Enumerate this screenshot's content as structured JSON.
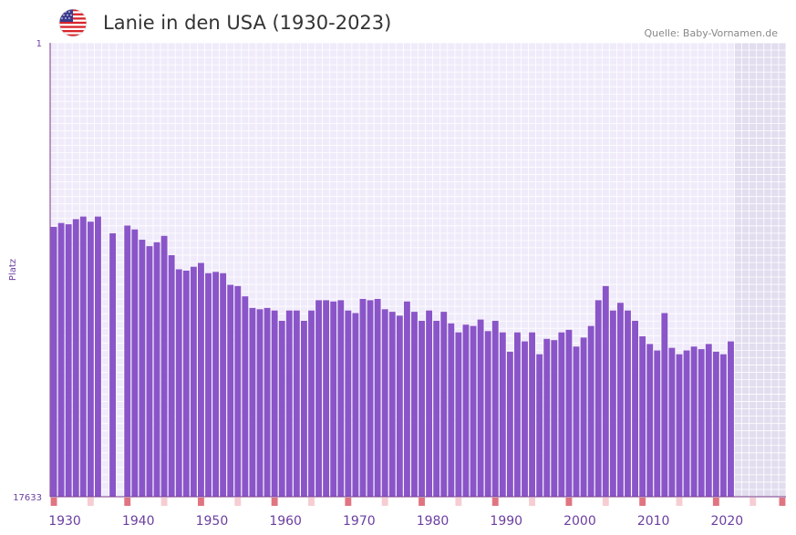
{
  "header": {
    "title": "Lanie in den USA (1930-2023)",
    "source": "Quelle: Baby-Vornamen.de",
    "flag_icon": "usa-flag-icon"
  },
  "colors": {
    "bar": "#8a55c8",
    "background": "#f0ebfa",
    "future": "#e2ddef",
    "grid": "#ffffff",
    "axis": "#7a3a8a",
    "decade_marker": "#e07480",
    "half_marker": "#f6cdd3",
    "tick_text": "#6b3fa0"
  },
  "chart_data": {
    "type": "bar",
    "title": "Lanie in den USA (1930-2023)",
    "ylabel": "Platz",
    "xlabel": "",
    "y_reversed": true,
    "ylim": [
      1,
      17633
    ],
    "xlim": [
      1930,
      2029
    ],
    "y_ticks": [
      "1",
      "17633"
    ],
    "x_ticks": [
      "1930",
      "1940",
      "1950",
      "1960",
      "1970",
      "1980",
      "1990",
      "2000",
      "2010",
      "2020"
    ],
    "future_start_year": 2023,
    "categories": [
      1930,
      1931,
      1932,
      1933,
      1934,
      1935,
      1936,
      1937,
      1938,
      1939,
      1940,
      1941,
      1942,
      1943,
      1944,
      1945,
      1946,
      1947,
      1948,
      1949,
      1950,
      1951,
      1952,
      1953,
      1954,
      1955,
      1956,
      1957,
      1958,
      1959,
      1960,
      1961,
      1962,
      1963,
      1964,
      1965,
      1966,
      1967,
      1968,
      1969,
      1970,
      1971,
      1972,
      1973,
      1974,
      1975,
      1976,
      1977,
      1978,
      1979,
      1980,
      1981,
      1982,
      1983,
      1984,
      1985,
      1986,
      1987,
      1988,
      1989,
      1990,
      1991,
      1992,
      1993,
      1994,
      1995,
      1996,
      1997,
      1998,
      1999,
      2000,
      2001,
      2002,
      2003,
      2004,
      2005,
      2006,
      2007,
      2008,
      2009,
      2010,
      2011,
      2012,
      2013,
      2014,
      2015,
      2016,
      2017,
      2018,
      2019,
      2020,
      2021,
      2022
    ],
    "values": [
      7150,
      7000,
      7050,
      6850,
      6750,
      6950,
      6750,
      null,
      7400,
      null,
      7100,
      7250,
      7650,
      7900,
      7750,
      7500,
      8250,
      8800,
      8850,
      8700,
      8550,
      8950,
      8900,
      8950,
      9400,
      9450,
      9850,
      10300,
      10350,
      10300,
      10400,
      10800,
      10400,
      10400,
      10800,
      10400,
      10000,
      10000,
      10050,
      10000,
      10400,
      10500,
      9950,
      10000,
      9950,
      10350,
      10450,
      10600,
      10050,
      10450,
      10800,
      10400,
      10800,
      10450,
      10900,
      11250,
      10950,
      11000,
      10750,
      11200,
      10800,
      11250,
      12000,
      11250,
      11600,
      11250,
      12100,
      11500,
      11550,
      11250,
      11150,
      11800,
      11450,
      11000,
      10000,
      9450,
      10400,
      10100,
      10400,
      10800,
      11400,
      11700,
      11950,
      10500,
      11850,
      12100,
      11950,
      11800,
      11900,
      11700,
      12000,
      12100,
      11600
    ],
    "markers": [
      {
        "year": 1930,
        "level": "strong"
      },
      {
        "year": 1935,
        "level": "light"
      },
      {
        "year": 1940,
        "level": "strong"
      },
      {
        "year": 1945,
        "level": "light"
      },
      {
        "year": 1950,
        "level": "strong"
      },
      {
        "year": 1955,
        "level": "light"
      },
      {
        "year": 1960,
        "level": "strong"
      },
      {
        "year": 1965,
        "level": "light"
      },
      {
        "year": 1970,
        "level": "strong"
      },
      {
        "year": 1975,
        "level": "light"
      },
      {
        "year": 1980,
        "level": "strong"
      },
      {
        "year": 1985,
        "level": "light"
      },
      {
        "year": 1990,
        "level": "strong"
      },
      {
        "year": 1995,
        "level": "light"
      },
      {
        "year": 2000,
        "level": "strong"
      },
      {
        "year": 2005,
        "level": "light"
      },
      {
        "year": 2010,
        "level": "strong"
      },
      {
        "year": 2015,
        "level": "light"
      },
      {
        "year": 2020,
        "level": "strong"
      },
      {
        "year": 2025,
        "level": "light"
      },
      {
        "year": 2030,
        "level": "strong"
      }
    ]
  }
}
